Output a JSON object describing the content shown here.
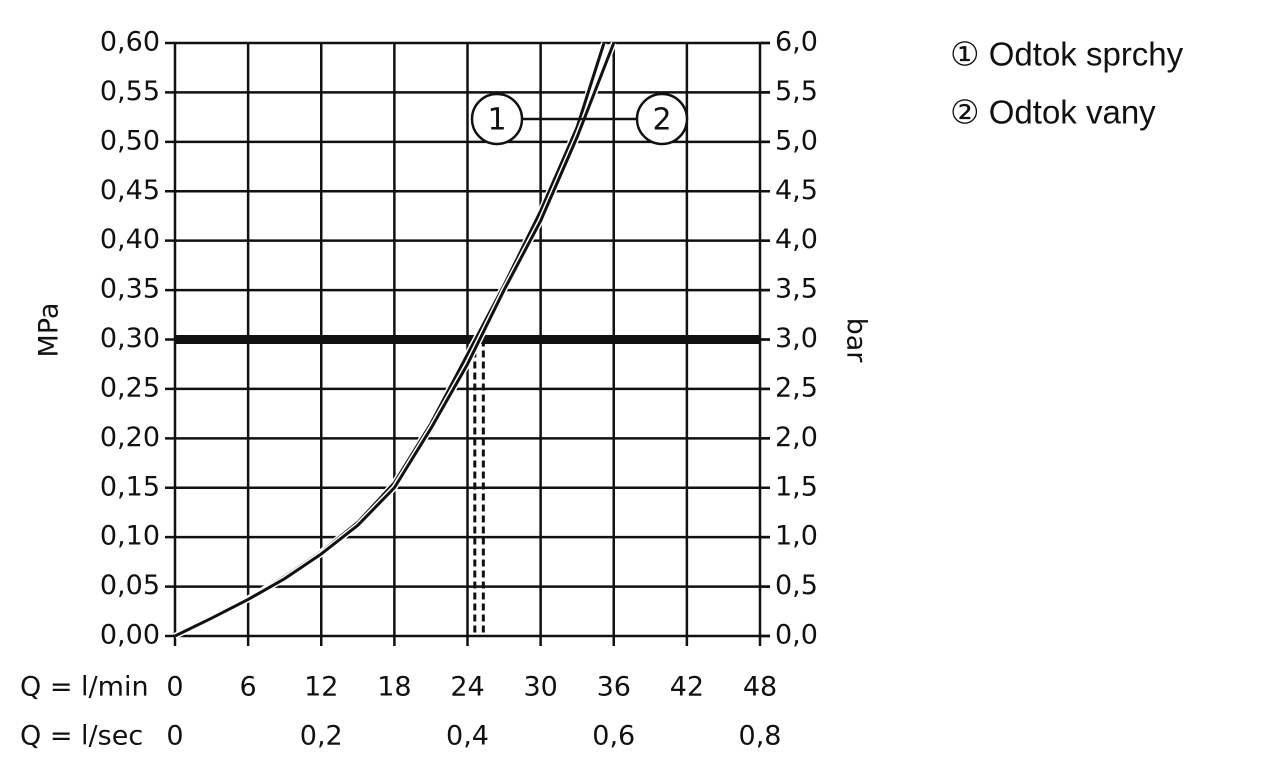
{
  "chart_data": {
    "type": "line",
    "xlabel": "Q = l/min",
    "x2label": "Q = l/sec",
    "ylabel": "MPa",
    "y2label": "bar",
    "xlim": [
      0,
      48
    ],
    "xticks": [
      0,
      6,
      12,
      18,
      24,
      30,
      36,
      42,
      48
    ],
    "x2lim": [
      0,
      0.8
    ],
    "x2ticks": [
      0,
      {
        "value": 0.2,
        "label": "0,2"
      },
      {
        "value": 0.4,
        "label": "0,4"
      },
      {
        "value": 0.6,
        "label": "0,6"
      },
      {
        "value": 0.8,
        "label": "0,8"
      }
    ],
    "ylim": [
      0,
      0.6
    ],
    "yticks": [
      {
        "value": 0,
        "label": "0,00"
      },
      {
        "value": 0.05,
        "label": "0,05"
      },
      {
        "value": 0.1,
        "label": "0,10"
      },
      {
        "value": 0.15,
        "label": "0,15"
      },
      {
        "value": 0.2,
        "label": "0,20"
      },
      {
        "value": 0.25,
        "label": "0,25"
      },
      {
        "value": 0.3,
        "label": "0,30"
      },
      {
        "value": 0.35,
        "label": "0,35"
      },
      {
        "value": 0.4,
        "label": "0,40"
      },
      {
        "value": 0.45,
        "label": "0,45"
      },
      {
        "value": 0.5,
        "label": "0,50"
      },
      {
        "value": 0.55,
        "label": "0,55"
      },
      {
        "value": 0.6,
        "label": "0,60"
      }
    ],
    "y2lim": [
      0,
      6
    ],
    "y2ticks": [
      {
        "value": 0,
        "label": "0,0"
      },
      {
        "value": 0.5,
        "label": "0,5"
      },
      {
        "value": 1,
        "label": "1,0"
      },
      {
        "value": 1.5,
        "label": "1,5"
      },
      {
        "value": 2,
        "label": "2,0"
      },
      {
        "value": 2.5,
        "label": "2,5"
      },
      {
        "value": 3,
        "label": "3,0"
      },
      {
        "value": 3.5,
        "label": "3,5"
      },
      {
        "value": 4,
        "label": "4,0"
      },
      {
        "value": 4.5,
        "label": "4,5"
      },
      {
        "value": 5,
        "label": "5,0"
      },
      {
        "value": 5.5,
        "label": "5,5"
      },
      {
        "value": 6,
        "label": "6,0"
      }
    ],
    "grid": true,
    "series": [
      {
        "name": "① Odtok sprchy",
        "tag": "1",
        "color": "#111111",
        "x": [
          0,
          3,
          6,
          9,
          12,
          15,
          18,
          21,
          24,
          27,
          30,
          33,
          35.2
        ],
        "values": [
          0,
          0.018,
          0.038,
          0.06,
          0.085,
          0.115,
          0.155,
          0.215,
          0.285,
          0.355,
          0.43,
          0.515,
          0.6
        ]
      },
      {
        "name": "② Odtok vany",
        "tag": "2",
        "color": "#111111",
        "x": [
          0,
          3,
          6,
          9,
          12,
          15,
          18,
          21,
          24,
          27,
          30,
          33,
          36
        ],
        "values": [
          0,
          0.018,
          0.037,
          0.058,
          0.083,
          0.112,
          0.15,
          0.21,
          0.275,
          0.35,
          0.42,
          0.505,
          0.6
        ]
      }
    ],
    "hlines": [
      0.3
    ],
    "vlines": [
      24.6,
      25.3
    ]
  }
}
